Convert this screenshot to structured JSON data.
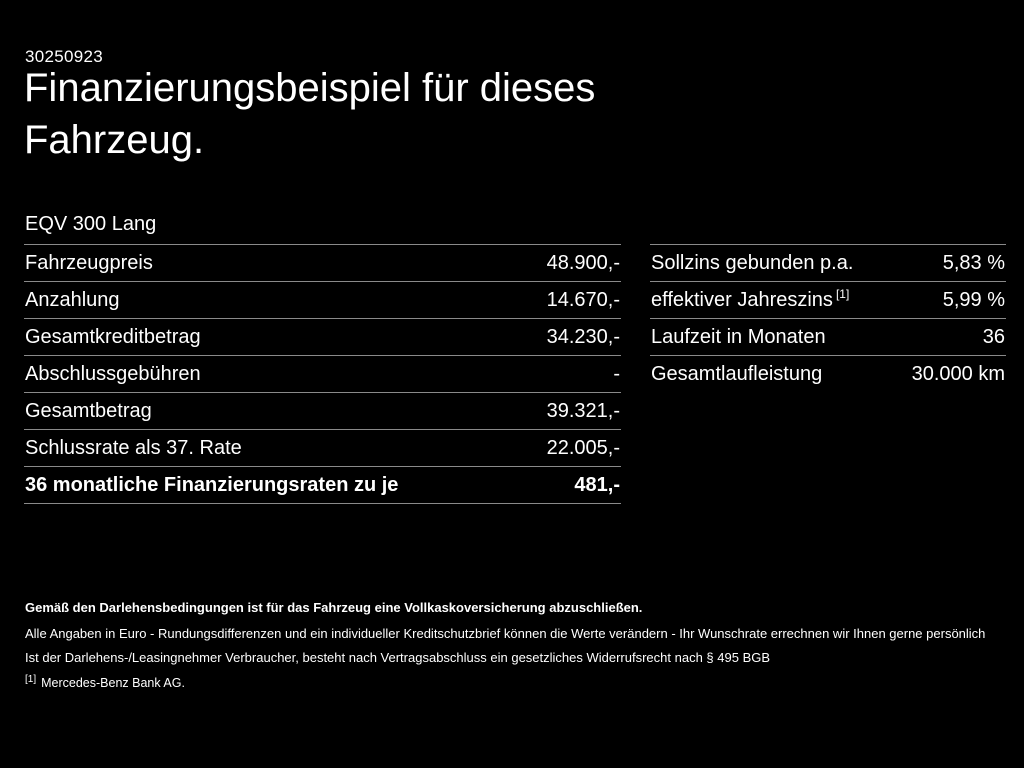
{
  "meta": {
    "id": "30250923"
  },
  "title": "Finanzierungsbeispiel für dieses Fahrzeug.",
  "vehicle": {
    "model": "EQV 300 Lang"
  },
  "left_table": {
    "rows": [
      {
        "label": "Fahrzeugpreis",
        "value": "48.900,-"
      },
      {
        "label": "Anzahlung",
        "value": "14.670,-"
      },
      {
        "label": "Gesamtkreditbetrag",
        "value": "34.230,-"
      },
      {
        "label": "Abschlussgebühren",
        "value": "-"
      },
      {
        "label": "Gesamtbetrag",
        "value": "39.321,-"
      },
      {
        "label": "Schlussrate als 37. Rate",
        "value": "22.005,-"
      },
      {
        "label": "36 monatliche Finanzierungsraten zu je",
        "value": "481,-"
      }
    ]
  },
  "right_table": {
    "rows": [
      {
        "label": "Sollzins gebunden p.a.",
        "footnote": "",
        "value": "5,83 %"
      },
      {
        "label": "effektiver Jahreszins",
        "footnote": "[1]",
        "value": "5,99 %"
      },
      {
        "label": "Laufzeit in Monaten",
        "footnote": "",
        "value": "36"
      },
      {
        "label": "Gesamtlaufleistung",
        "footnote": "",
        "value": "30.000 km"
      }
    ]
  },
  "footer": {
    "insurance_note": "Gemäß den Darlehensbedingungen ist für das Fahrzeug eine Vollkaskoversicherung abzuschließen.",
    "disclaimer_1": "Alle Angaben in Euro - Rundungsdifferenzen und ein individueller Kreditschutzbrief können die Werte verändern - Ihr Wunschrate errechnen wir Ihnen gerne persönlich",
    "disclaimer_2": "Ist der Darlehens-/Leasingnehmer Verbraucher, besteht nach Vertragsabschluss ein gesetzliches Widerrufsrecht nach § 495 BGB",
    "footnote_marker": "[1]",
    "footnote_text": "Mercedes-Benz Bank AG."
  }
}
